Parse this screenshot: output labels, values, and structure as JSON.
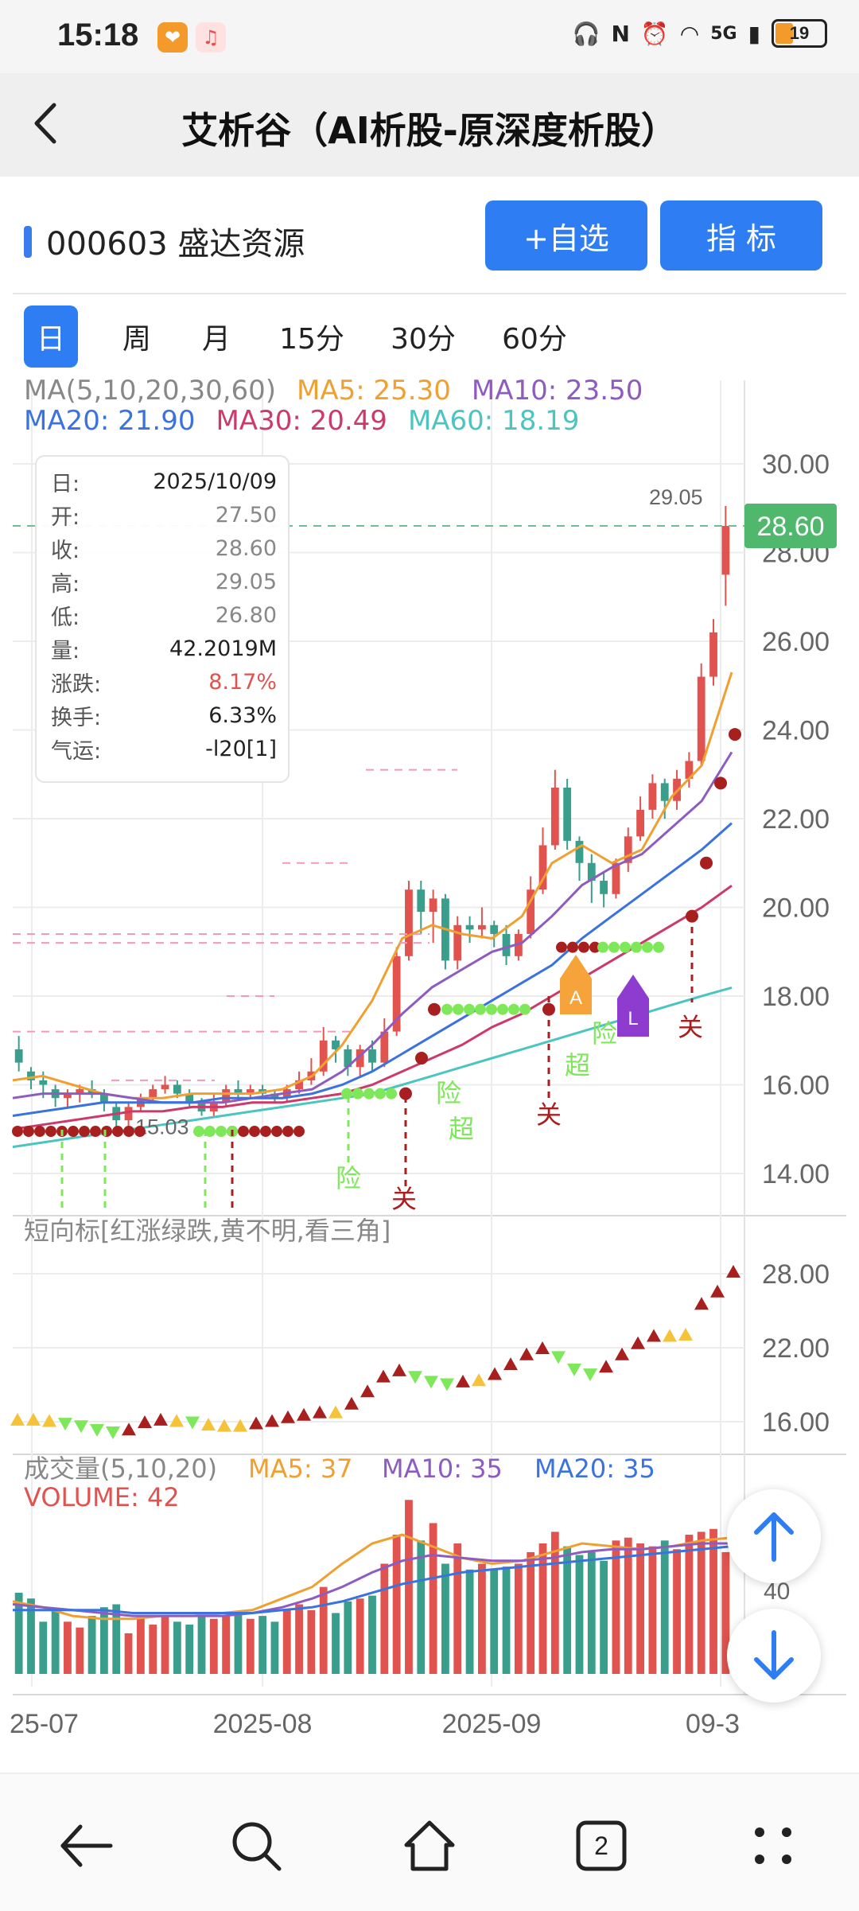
{
  "status": {
    "time": "15:18",
    "network": "5G",
    "battery": "19"
  },
  "header": {
    "title": "艾析谷（AI析股-原深度析股）"
  },
  "stock": {
    "name": "000603 盛达资源",
    "add_label": "+自选",
    "indicator_label": "指 标"
  },
  "periods": [
    "日",
    "周",
    "月",
    "15分",
    "30分",
    "60分"
  ],
  "active_period": "日",
  "ma_legend": {
    "title": "MA(5,10,20,30,60)",
    "ma5": "MA5: 25.30",
    "ma10": "MA10: 23.50",
    "ma20": "MA20: 21.90",
    "ma30": "MA30: 20.49",
    "ma60": "MA60: 18.19"
  },
  "info": {
    "rows": [
      {
        "k": "日:",
        "v": "2025/10/09"
      },
      {
        "k": "开:",
        "v": "27.50"
      },
      {
        "k": "收:",
        "v": "28.60"
      },
      {
        "k": "高:",
        "v": "29.05"
      },
      {
        "k": "低:",
        "v": "26.80"
      },
      {
        "k": "量:",
        "v": "42.2019M"
      },
      {
        "k": "涨跌:",
        "v": "8.17%"
      },
      {
        "k": "换手:",
        "v": "6.33%"
      },
      {
        "k": "气运:",
        "v": "-l20[1]"
      }
    ]
  },
  "colors": {
    "accent": "#2e7df2",
    "up": "#e0534f",
    "down": "#3a9e8c",
    "ma5": "#f0a030",
    "ma10": "#8e5cc0",
    "ma20": "#3a73e0",
    "ma30": "#cc3a6a",
    "ma60": "#4cc4c0",
    "dot_red": "#a81f1f",
    "dot_green": "#7ee85a",
    "last_price_bg": "#4fb86c"
  },
  "chart_data": {
    "type": "line",
    "main": {
      "yticks": [
        "30.00",
        "28.00",
        "26.00",
        "24.00",
        "22.00",
        "20.00",
        "18.00",
        "16.00",
        "14.00"
      ],
      "ylim": [
        13.2,
        30.8
      ],
      "last_price": "28.60",
      "high_label": "29.05",
      "low_label": "15.03",
      "ma5_end": 25.3,
      "ma10_end": 23.5,
      "ma20_end": 21.9,
      "ma30_end": 20.49,
      "ma60_end": 18.19,
      "annotations": [
        "险",
        "关",
        "险",
        "超",
        "关",
        "超",
        "险",
        "关",
        "A",
        "L"
      ]
    },
    "short_indicator": {
      "title": "短向标[红涨绿跌,黄不明,看三角]",
      "yticks": [
        "28.00",
        "22.00",
        "16.00"
      ]
    },
    "volume": {
      "title": "成交量(5,10,20)",
      "ma5": "MA5: 37",
      "ma10": "MA10: 35",
      "ma20": "MA20: 35",
      "volume_label": "VOLUME: 42",
      "ytick": "40"
    },
    "x_labels": [
      "25-07",
      "2025-08",
      "2025-09",
      "09-3"
    ]
  },
  "nav": {
    "tab_count": "2"
  }
}
